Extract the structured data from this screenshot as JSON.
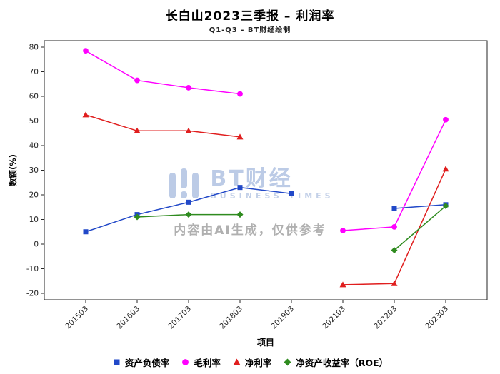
{
  "title": "长白山2023三季报 – 利润率",
  "subtitle": "Q1-Q3 - BT财经绘制",
  "watermark": {
    "brand": "BT财经",
    "brand_sub": "BUSINESS TIMES",
    "ai_notice": "内容由AI生成，仅供参考"
  },
  "chart_data": {
    "type": "line",
    "title": "长白山2023三季报 – 利润率",
    "xlabel": "项目",
    "ylabel": "数额(%)",
    "x": [
      "201503",
      "201603",
      "201703",
      "201803",
      "201903",
      "202103",
      "202203",
      "202303"
    ],
    "ylim": [
      -20,
      80
    ],
    "yticks": [
      -20,
      -10,
      0,
      10,
      20,
      30,
      40,
      50,
      60,
      70,
      80
    ],
    "grid": false,
    "legend_position": "bottom",
    "series": [
      {
        "name": "资产负债率",
        "color": "#2148c8",
        "marker": "square",
        "values": [
          5,
          12,
          17,
          23,
          20.5,
          null,
          14.5,
          16
        ]
      },
      {
        "name": "毛利率",
        "color": "#ff00ff",
        "marker": "circle",
        "values": [
          78.5,
          66.5,
          63.5,
          61,
          null,
          5.5,
          7,
          50.5
        ]
      },
      {
        "name": "净利率",
        "color": "#e01e1e",
        "marker": "triangle",
        "values": [
          52.5,
          46,
          46,
          43.5,
          null,
          -16.5,
          -16,
          30.5
        ]
      },
      {
        "name": "净资产收益率（ROE）",
        "color": "#2f8b1f",
        "marker": "diamond",
        "values": [
          null,
          11,
          12,
          12,
          null,
          null,
          -2.5,
          15.5
        ]
      }
    ]
  }
}
